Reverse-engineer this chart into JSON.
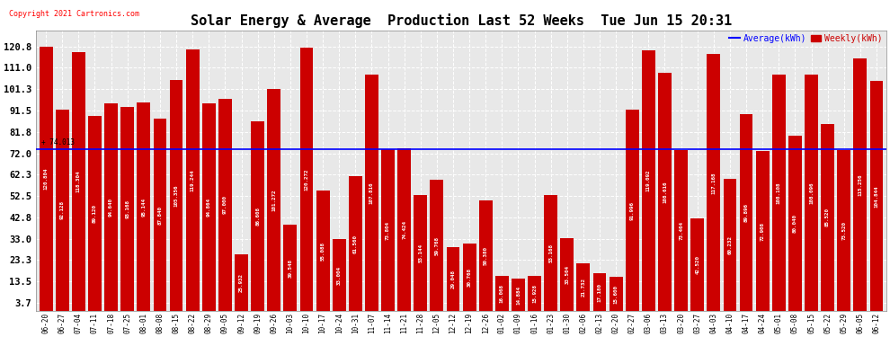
{
  "title": "Solar Energy & Average  Production Last 52 Weeks  Tue Jun 15 20:31",
  "copyright": "Copyright 2021 Cartronics.com",
  "legend_average": "Average(kWh)",
  "legend_weekly": "Weekly(kWh)",
  "bar_color": "#CC0000",
  "average_line_color": "#0000FF",
  "yticks": [
    3.7,
    13.5,
    23.3,
    33.0,
    42.8,
    52.5,
    62.3,
    72.0,
    81.8,
    91.5,
    101.3,
    111.0,
    120.8
  ],
  "ylim": [
    0,
    128
  ],
  "average_value": 74.013,
  "weekly_values": [
    120.804,
    92.128,
    118.304,
    89.12,
    94.64,
    93.168,
    95.144,
    87.84,
    105.356,
    119.244,
    94.864,
    97.0,
    25.932,
    86.608,
    101.272,
    39.548,
    120.272,
    55.088,
    33.004,
    61.56,
    107.816,
    73.804,
    74.424,
    53.144,
    59.768,
    29.048,
    30.768,
    50.38,
    16.068,
    14.884,
    15.928,
    53.168,
    33.504,
    21.732,
    17.18,
    15.6,
    91.996,
    119.092,
    108.616,
    73.464,
    42.52,
    117.168,
    60.232,
    89.896,
    72.908,
    108.108,
    80.04,
    108.096,
    85.52,
    73.52,
    115.256,
    104.844
  ],
  "x_labels": [
    "06-20",
    "06-27",
    "07-04",
    "07-11",
    "07-18",
    "07-25",
    "08-01",
    "08-08",
    "08-15",
    "08-22",
    "08-29",
    "09-05",
    "09-12",
    "09-19",
    "09-26",
    "10-03",
    "10-10",
    "10-17",
    "10-24",
    "10-31",
    "11-07",
    "11-14",
    "11-21",
    "11-28",
    "12-05",
    "12-12",
    "12-19",
    "12-26",
    "01-02",
    "01-09",
    "01-16",
    "01-23",
    "01-30",
    "02-06",
    "02-13",
    "02-20",
    "02-27",
    "03-06",
    "03-13",
    "03-20",
    "03-27",
    "04-03",
    "04-10",
    "04-17",
    "04-24",
    "05-01",
    "05-08",
    "05-15",
    "05-22",
    "05-29",
    "06-05",
    "06-12"
  ]
}
